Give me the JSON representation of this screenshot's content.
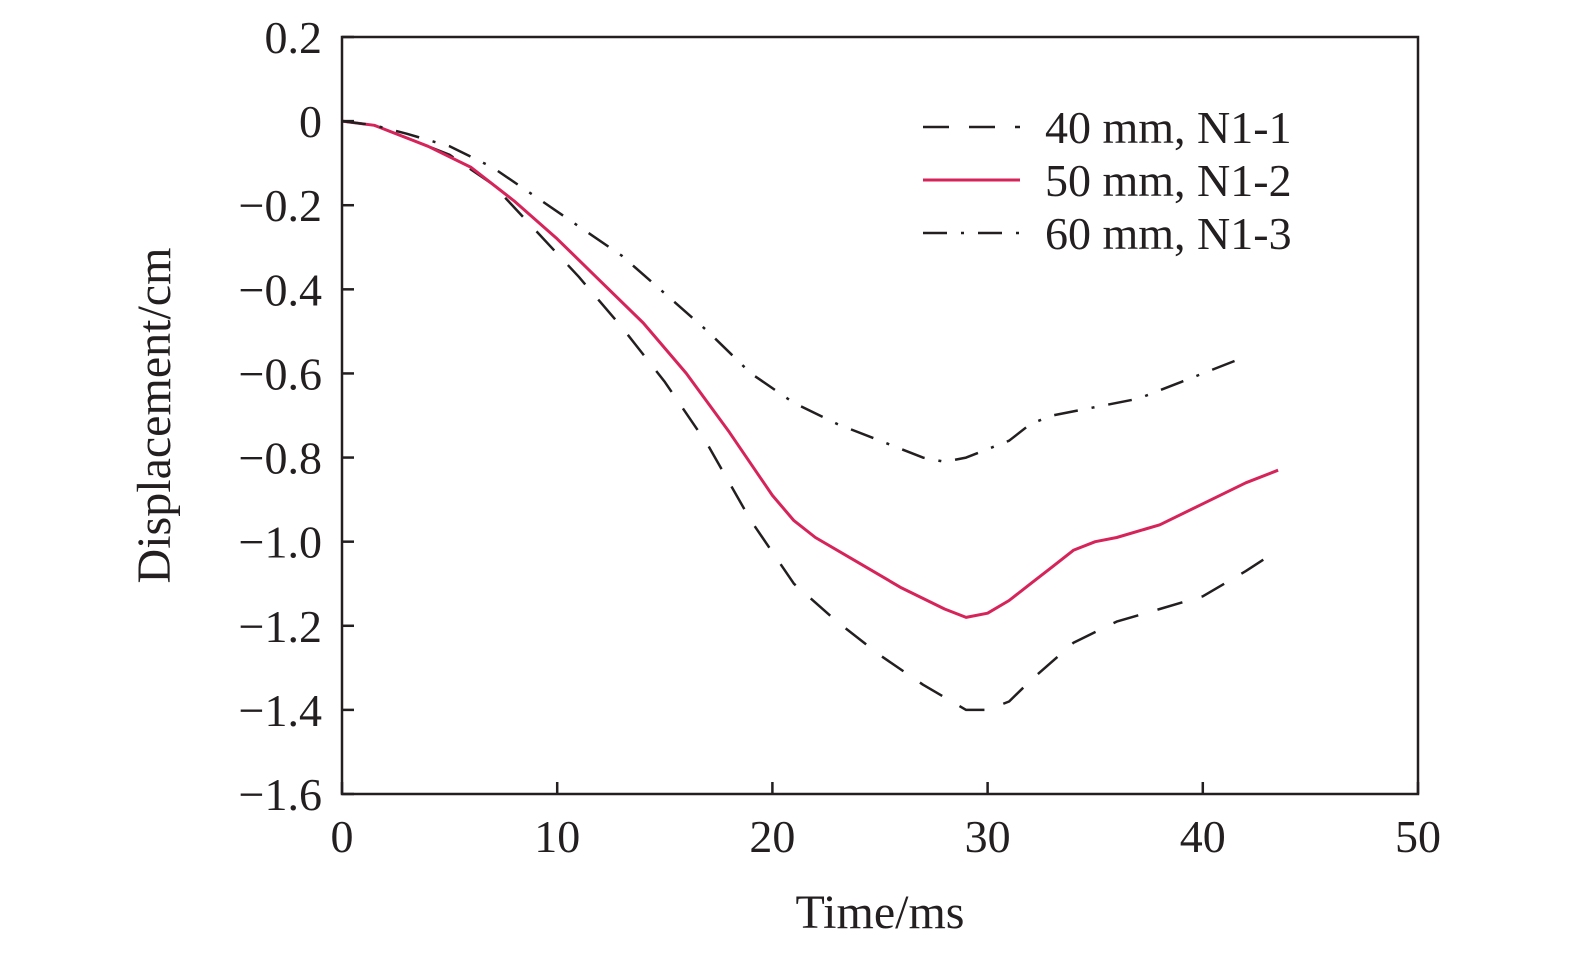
{
  "chart_data": {
    "type": "line",
    "title": "",
    "xlabel": "Time/ms",
    "ylabel": "Displacement/cm",
    "xlim": [
      0,
      50
    ],
    "ylim": [
      -1.6,
      0.2
    ],
    "xticks": [
      0,
      10,
      20,
      30,
      40,
      50
    ],
    "yticks": [
      0.2,
      0,
      -0.2,
      -0.4,
      -0.6,
      -0.8,
      -1.0,
      -1.2,
      -1.4,
      -1.6
    ],
    "xtick_labels": [
      "0",
      "10",
      "20",
      "30",
      "40",
      "50"
    ],
    "ytick_labels": [
      "0.2",
      "0",
      "−0.2",
      "−0.4",
      "−0.6",
      "−0.8",
      "−1.0",
      "−1.2",
      "−1.4",
      "−1.6"
    ],
    "grid": false,
    "legend_position": "top-right",
    "series": [
      {
        "name": "40 mm, N1-1",
        "style": "dashed",
        "color": "#231f20",
        "x": [
          0,
          1.5,
          3,
          5,
          7,
          9,
          11,
          13,
          15,
          17,
          19,
          21,
          23,
          25,
          27,
          29,
          30,
          31,
          32,
          34,
          36,
          38,
          40,
          42,
          43.5
        ],
        "y": [
          0,
          -0.01,
          -0.04,
          -0.08,
          -0.15,
          -0.26,
          -0.37,
          -0.49,
          -0.62,
          -0.77,
          -0.95,
          -1.1,
          -1.19,
          -1.27,
          -1.34,
          -1.4,
          -1.4,
          -1.38,
          -1.33,
          -1.24,
          -1.19,
          -1.16,
          -1.13,
          -1.07,
          -1.02
        ]
      },
      {
        "name": "50 mm, N1-2",
        "style": "solid",
        "color": "#d6245a",
        "x": [
          0,
          1.5,
          3,
          4,
          6,
          8,
          10,
          12,
          14,
          16,
          18,
          20,
          21,
          22,
          24,
          26,
          28,
          29,
          30,
          31,
          32,
          33,
          34,
          35,
          36,
          38,
          40,
          42,
          43.5
        ],
        "y": [
          0,
          -0.01,
          -0.04,
          -0.06,
          -0.11,
          -0.19,
          -0.28,
          -0.38,
          -0.48,
          -0.6,
          -0.74,
          -0.89,
          -0.95,
          -0.99,
          -1.05,
          -1.11,
          -1.16,
          -1.18,
          -1.17,
          -1.14,
          -1.1,
          -1.06,
          -1.02,
          -1.0,
          -0.99,
          -0.96,
          -0.91,
          -0.86,
          -0.83
        ]
      },
      {
        "name": "60 mm, N1-3",
        "style": "dashdot",
        "color": "#231f20",
        "x": [
          0,
          1.5,
          3,
          5,
          7,
          9,
          11,
          13,
          15,
          17,
          19,
          21,
          23,
          25,
          27,
          28,
          29,
          31,
          32,
          33,
          35,
          37,
          39,
          41,
          42
        ],
        "y": [
          0,
          -0.01,
          -0.03,
          -0.06,
          -0.11,
          -0.18,
          -0.25,
          -0.32,
          -0.41,
          -0.5,
          -0.6,
          -0.67,
          -0.72,
          -0.76,
          -0.8,
          -0.81,
          -0.8,
          -0.76,
          -0.72,
          -0.7,
          -0.68,
          -0.66,
          -0.62,
          -0.58,
          -0.56
        ]
      }
    ]
  }
}
